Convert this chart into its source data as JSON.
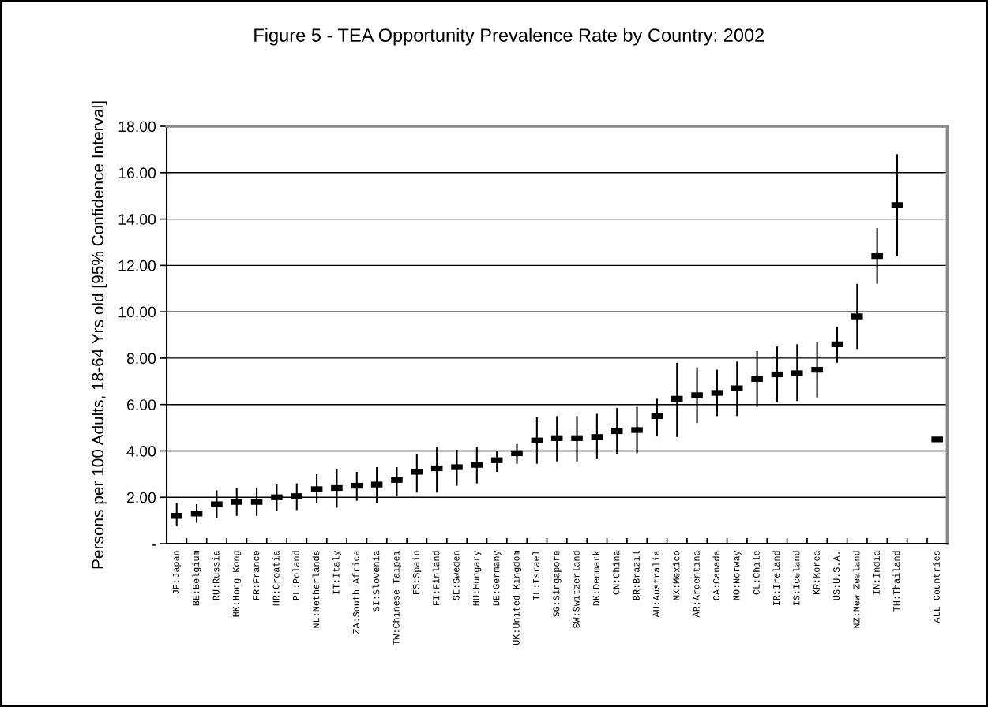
{
  "chart_data": {
    "type": "scatter",
    "title": "Figure 5 - TEA Opportunity Prevalence Rate by Country: 2002",
    "ylabel": "Persons per 100 Adults, 18-64 Yrs old [95% Confidence Interval]",
    "categories": [
      "JP:Japan",
      "BE:Belgium",
      "RU:Russia",
      "HK:Hong Kong",
      "FR:France",
      "HR:Croatia",
      "PL:Poland",
      "NL:Netherlands",
      "IT:Italy",
      "ZA:South Africa",
      "SI:Slovenia",
      "TW:Chinese Taipei",
      "ES:Spain",
      "FI:Finland",
      "SE:Sweden",
      "HU:Hungary",
      "DE:Germany",
      "UK:United Kingdom",
      "IL:Israel",
      "SG:Singapore",
      "SW:Switzerland",
      "DK:Denmark",
      "CN:China",
      "BR:Brazil",
      "AU:Australia",
      "MX:Mexico",
      "AR:Argentina",
      "CA:Canada",
      "NO:Norway",
      "CL:Chile",
      "IR:Ireland",
      "IS:Iceland",
      "KR:Korea",
      "US:U.S.A.",
      "NZ:New Zealand",
      "IN:India",
      "TH:Thailand",
      null,
      "ALL Countries"
    ],
    "series": [
      {
        "color": "#000000",
        "values": [
          1.2,
          1.3,
          1.7,
          1.8,
          1.8,
          2.0,
          2.05,
          2.35,
          2.4,
          2.5,
          2.55,
          2.75,
          3.1,
          3.25,
          3.3,
          3.4,
          3.6,
          3.9,
          4.45,
          4.55,
          4.55,
          4.6,
          4.85,
          4.9,
          5.5,
          6.25,
          6.4,
          6.5,
          6.7,
          7.1,
          7.3,
          7.35,
          7.5,
          8.6,
          9.8,
          12.4,
          14.6,
          null,
          4.5
        ],
        "errors": [
          [
            0.75,
            1.75
          ],
          [
            0.9,
            1.7
          ],
          [
            1.1,
            2.3
          ],
          [
            1.2,
            2.4
          ],
          [
            1.2,
            2.4
          ],
          [
            1.4,
            2.55
          ],
          [
            1.45,
            2.6
          ],
          [
            1.75,
            3.0
          ],
          [
            1.55,
            3.2
          ],
          [
            1.85,
            3.1
          ],
          [
            1.75,
            3.3
          ],
          [
            2.05,
            3.3
          ],
          [
            2.2,
            3.85
          ],
          [
            2.2,
            4.15
          ],
          [
            2.5,
            4.05
          ],
          [
            2.6,
            4.15
          ],
          [
            3.1,
            4.0
          ],
          [
            3.45,
            4.3
          ],
          [
            3.45,
            5.45
          ],
          [
            3.55,
            5.5
          ],
          [
            3.55,
            5.5
          ],
          [
            3.65,
            5.6
          ],
          [
            3.85,
            5.85
          ],
          [
            3.9,
            5.9
          ],
          [
            4.65,
            6.25
          ],
          [
            4.6,
            7.8
          ],
          [
            5.2,
            7.6
          ],
          [
            5.5,
            7.5
          ],
          [
            5.5,
            7.85
          ],
          [
            5.9,
            8.3
          ],
          [
            6.1,
            8.5
          ],
          [
            6.15,
            8.6
          ],
          [
            6.3,
            8.7
          ],
          [
            7.8,
            9.35
          ],
          [
            8.4,
            11.2
          ],
          [
            11.2,
            13.6
          ],
          [
            12.4,
            16.8
          ],
          null,
          null
        ]
      }
    ],
    "ylim": [
      0,
      18
    ],
    "yticks": [
      {
        "value": 0,
        "label": "-"
      },
      {
        "value": 2,
        "label": "2.00"
      },
      {
        "value": 4,
        "label": "4.00"
      },
      {
        "value": 6,
        "label": "6.00"
      },
      {
        "value": 8,
        "label": "8.00"
      },
      {
        "value": 10,
        "label": "10.00"
      },
      {
        "value": 12,
        "label": "12.00"
      },
      {
        "value": 14,
        "label": "14.00"
      },
      {
        "value": 16,
        "label": "16.00"
      },
      {
        "value": 18,
        "label": "18.00"
      }
    ],
    "grid": "y",
    "marker": "square",
    "legend": false
  }
}
